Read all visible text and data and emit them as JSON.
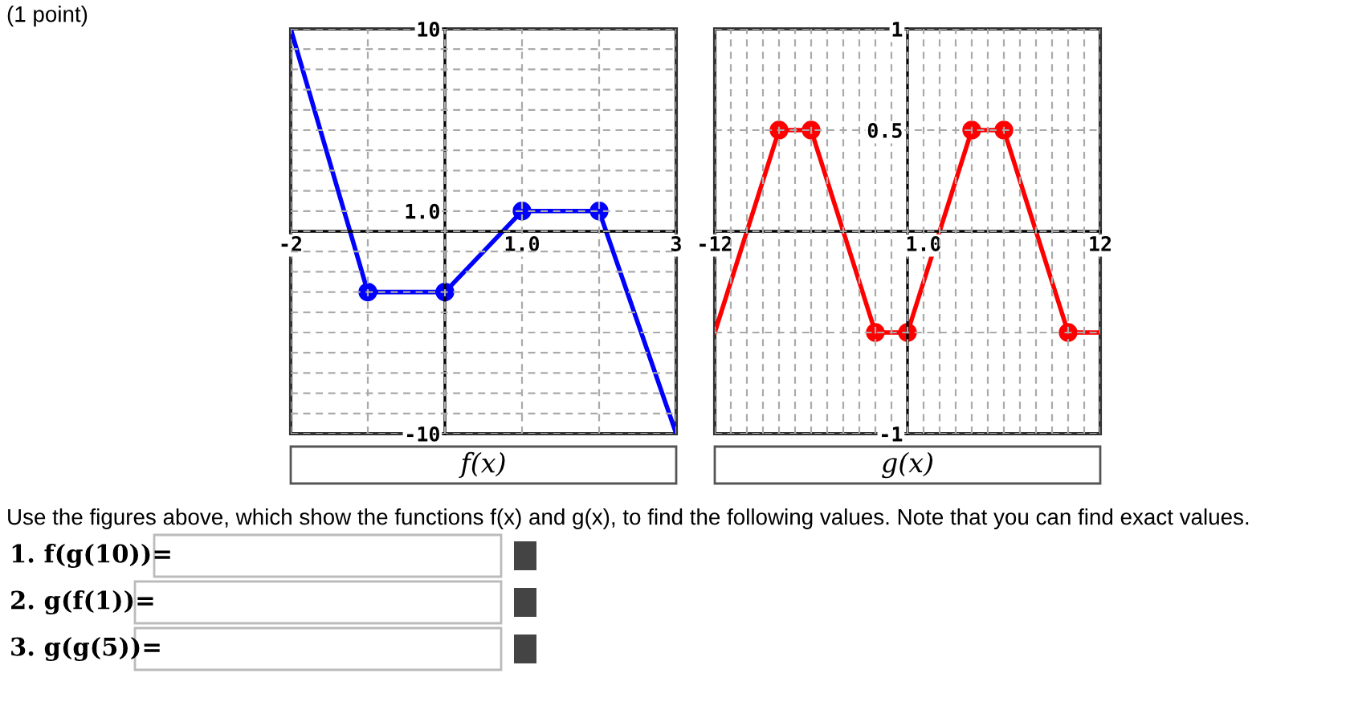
{
  "chart_data": [
    {
      "type": "line",
      "xlabel": "f(x)",
      "xlim": [
        -2,
        3
      ],
      "ylim": [
        -10,
        10
      ],
      "xticks": [
        -2,
        {
          "value": -1,
          "label": null
        },
        {
          "value": 0,
          "label": null
        },
        {
          "value": 1,
          "label": "1.0"
        },
        {
          "value": 2,
          "label": null
        },
        3
      ],
      "yticks": [
        -10,
        {
          "value": -9,
          "label": null
        },
        {
          "value": -8,
          "label": null
        },
        {
          "value": -7,
          "label": null
        },
        {
          "value": -6,
          "label": null
        },
        {
          "value": -5,
          "label": null
        },
        {
          "value": -4,
          "label": null
        },
        {
          "value": -3,
          "label": null
        },
        {
          "value": -2,
          "label": null
        },
        {
          "value": -1,
          "label": null
        },
        {
          "value": 0,
          "label": null
        },
        {
          "value": 1,
          "label": "1.0"
        },
        {
          "value": 2,
          "label": null
        },
        {
          "value": 3,
          "label": null
        },
        {
          "value": 4,
          "label": null
        },
        {
          "value": 5,
          "label": null
        },
        {
          "value": 6,
          "label": null
        },
        {
          "value": 7,
          "label": null
        },
        {
          "value": 8,
          "label": null
        },
        {
          "value": 9,
          "label": null
        },
        10
      ],
      "grid": true,
      "series": [
        {
          "type": "line",
          "color": "#0000ff",
          "x": [
            -2,
            -1,
            0,
            1,
            2,
            3
          ],
          "values": [
            10,
            -3,
            -3,
            1,
            1,
            -10
          ]
        },
        {
          "type": "scatter",
          "color": "#0000ff",
          "marker": "circle",
          "x": [
            -1,
            0,
            1,
            2
          ],
          "values": [
            -3,
            -3,
            1,
            1
          ]
        }
      ],
      "annotations": [
        "(1 point)",
        "Use the figures above, which show the functions f(x) and g(x), to find the following values. Note that you can find exact values.",
        "1. f(g(10))=",
        "2. g(f(1))=",
        "3. g(g(5))="
      ]
    },
    {
      "type": "line",
      "xlabel": "g(x)",
      "xlim": [
        -12,
        12
      ],
      "ylim": [
        -1,
        1
      ],
      "xticks": [
        -12,
        {
          "value": -11,
          "label": null
        },
        {
          "value": -10,
          "label": null
        },
        {
          "value": -9,
          "label": null
        },
        {
          "value": -8,
          "label": null
        },
        {
          "value": -7,
          "label": null
        },
        {
          "value": -6,
          "label": null
        },
        {
          "value": -5,
          "label": null
        },
        {
          "value": -4,
          "label": null
        },
        {
          "value": -3,
          "label": null
        },
        {
          "value": -2,
          "label": null
        },
        {
          "value": -1,
          "label": null
        },
        {
          "value": 0,
          "label": null
        },
        {
          "value": 1,
          "label": "1.0"
        },
        {
          "value": 2,
          "label": null
        },
        {
          "value": 3,
          "label": null
        },
        {
          "value": 4,
          "label": null
        },
        {
          "value": 5,
          "label": null
        },
        {
          "value": 6,
          "label": null
        },
        {
          "value": 7,
          "label": null
        },
        {
          "value": 8,
          "label": null
        },
        {
          "value": 9,
          "label": null
        },
        {
          "value": 10,
          "label": null
        },
        {
          "value": 11,
          "label": null
        },
        12
      ],
      "yticks": [
        -1,
        {
          "value": -0.5,
          "label": null
        },
        {
          "value": 0,
          "label": null
        },
        0.5,
        1
      ],
      "grid": true,
      "series": [
        {
          "type": "line",
          "color": "#ff0000",
          "x": [
            -12,
            -8,
            -6,
            -2,
            0,
            4,
            6,
            10,
            12
          ],
          "values": [
            -0.5,
            0.5,
            0.5,
            -0.5,
            -0.5,
            0.5,
            0.5,
            -0.5,
            -0.5
          ]
        },
        {
          "type": "scatter",
          "color": "#ff0000",
          "marker": "circle",
          "x": [
            -8,
            -6,
            -2,
            0,
            4,
            6,
            10
          ],
          "values": [
            0.5,
            0.5,
            -0.5,
            -0.5,
            0.5,
            0.5,
            -0.5
          ]
        }
      ]
    }
  ]
}
